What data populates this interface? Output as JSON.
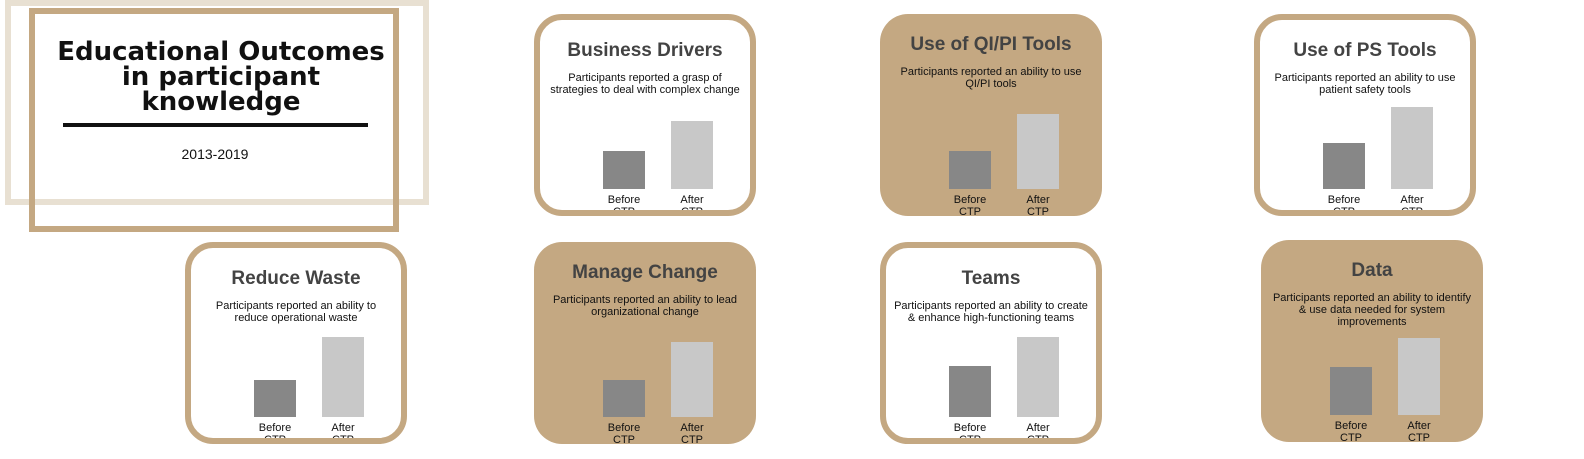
{
  "header": {
    "title_line1": "Educational Outcomes",
    "title_line2": "in participant knowledge",
    "date_range": "2013-2019"
  },
  "colors": {
    "accent": "#c4a882",
    "bar_before": "#878787",
    "bar_after": "#c8c8c8",
    "title_text": "#434343"
  },
  "chart_data": [
    {
      "type": "bar",
      "title": "Business Drivers",
      "subtitle": "Participants reported a grasp of strategies to deal with complex change",
      "categories": [
        "Before CTP",
        "After CTP"
      ],
      "values": [
        38,
        68
      ],
      "ylim": [
        0,
        100
      ]
    },
    {
      "type": "bar",
      "title": "Use of QI/PI Tools",
      "subtitle": "Participants reported an ability to use QI/PI tools",
      "categories": [
        "Before CTP",
        "After CTP"
      ],
      "values": [
        38,
        75
      ],
      "ylim": [
        0,
        100
      ]
    },
    {
      "type": "bar",
      "title": "Use of PS Tools",
      "subtitle": "Participants reported an ability to use patient safety tools",
      "categories": [
        "Before CTP",
        "After CTP"
      ],
      "values": [
        46,
        82
      ],
      "ylim": [
        0,
        100
      ]
    },
    {
      "type": "bar",
      "title": "Reduce Waste",
      "subtitle": "Participants reported an ability to reduce operational waste",
      "categories": [
        "Before CTP",
        "After CTP"
      ],
      "values": [
        37,
        80
      ],
      "ylim": [
        0,
        100
      ]
    },
    {
      "type": "bar",
      "title": "Manage Change",
      "subtitle": "Participants reported an ability to lead organizational change",
      "categories": [
        "Before CTP",
        "After CTP"
      ],
      "values": [
        37,
        75
      ],
      "ylim": [
        0,
        100
      ]
    },
    {
      "type": "bar",
      "title": "Teams",
      "subtitle": "Participants reported an ability to create & enhance high-functioning teams",
      "categories": [
        "Before CTP",
        "After CTP"
      ],
      "values": [
        51,
        80
      ],
      "ylim": [
        0,
        100
      ]
    },
    {
      "type": "bar",
      "title": "Data",
      "subtitle": "Participants reported an ability to identify & use data needed for system improvements",
      "categories": [
        "Before CTP",
        "After CTP"
      ],
      "values": [
        48,
        77
      ],
      "ylim": [
        0,
        100
      ]
    }
  ]
}
